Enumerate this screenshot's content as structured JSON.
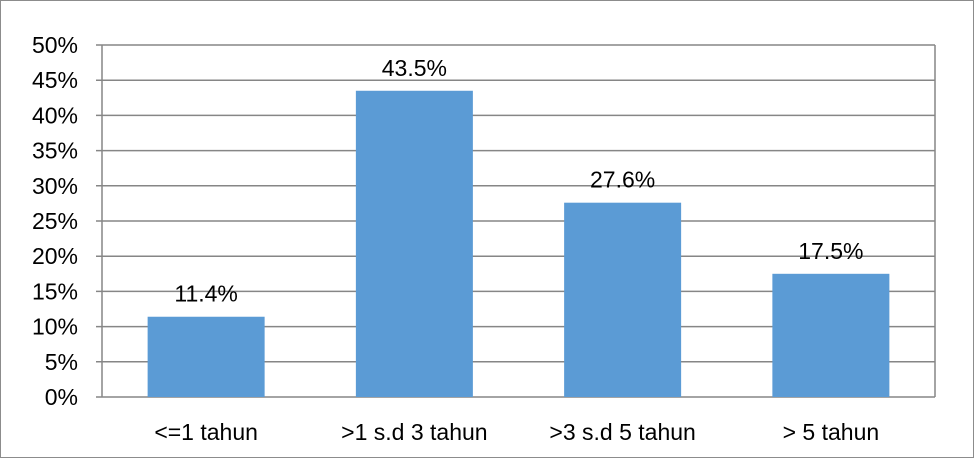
{
  "chart_data": {
    "type": "bar",
    "title": "",
    "xlabel": "",
    "ylabel": "",
    "categories": [
      "<=1 tahun",
      ">1 s.d 3 tahun",
      ">3 s.d 5 tahun",
      "> 5 tahun"
    ],
    "values": [
      11.4,
      43.5,
      27.6,
      17.5
    ],
    "data_labels": [
      "11.4%",
      "43.5%",
      "27.6%",
      "17.5%"
    ],
    "ylim": [
      0,
      50
    ],
    "y_ticks": [
      0,
      5,
      10,
      15,
      20,
      25,
      30,
      35,
      40,
      45,
      50
    ],
    "y_tick_labels": [
      "0%",
      "5%",
      "10%",
      "15%",
      "20%",
      "25%",
      "30%",
      "35%",
      "40%",
      "45%",
      "50%"
    ],
    "grid": true,
    "legend": "none",
    "bar_color": "#5b9bd5",
    "grid_color": "#868686"
  }
}
